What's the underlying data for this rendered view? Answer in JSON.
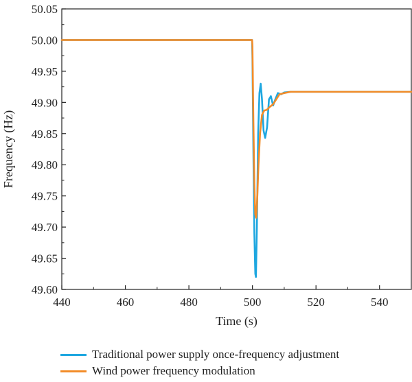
{
  "chart_data": {
    "type": "line",
    "xlabel": "Time (s)",
    "ylabel": "Frequency (Hz)",
    "xlim": [
      440,
      550
    ],
    "ylim": [
      49.6,
      50.05
    ],
    "xticks": [
      440,
      460,
      480,
      500,
      520,
      540
    ],
    "yticks": [
      "49.60",
      "49.65",
      "49.70",
      "49.75",
      "49.80",
      "49.85",
      "49.90",
      "49.95",
      "50.00",
      "50.05"
    ],
    "grid": false,
    "legend_position": "bottom",
    "series": [
      {
        "name": "Traditional power supply once-frequency adjustment",
        "color": "#1ea7e0",
        "x": [
          440,
          499.9,
          500.0,
          500.3,
          500.6,
          500.9,
          501.1,
          501.4,
          501.8,
          502.2,
          502.6,
          503.0,
          503.5,
          504.0,
          504.6,
          505.2,
          505.8,
          506.5,
          507.2,
          508.0,
          509.0,
          510.0,
          512.0,
          516.0,
          550
        ],
        "values": [
          50.0,
          50.0,
          49.97,
          49.82,
          49.69,
          49.625,
          49.62,
          49.7,
          49.85,
          49.915,
          49.93,
          49.905,
          49.855,
          49.843,
          49.86,
          49.905,
          49.91,
          49.895,
          49.905,
          49.915,
          49.913,
          49.916,
          49.917,
          49.917,
          49.917
        ]
      },
      {
        "name": "Wind power frequency modulation",
        "color": "#f28c28",
        "x": [
          440,
          499.9,
          500.0,
          500.3,
          500.6,
          500.9,
          501.2,
          501.5,
          501.9,
          502.4,
          503.0,
          503.7,
          504.5,
          505.5,
          506.5,
          507.5,
          508.5,
          510.0,
          512.0,
          515.0,
          550
        ],
        "values": [
          50.0,
          50.0,
          49.99,
          49.87,
          49.77,
          49.72,
          49.715,
          49.745,
          49.8,
          49.85,
          49.88,
          49.887,
          49.888,
          49.893,
          49.897,
          49.905,
          49.913,
          49.915,
          49.917,
          49.917,
          49.917
        ]
      }
    ]
  }
}
